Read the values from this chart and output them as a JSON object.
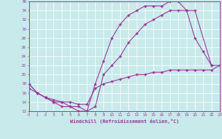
{
  "xlabel": "Windchill (Refroidissement éolien,°C)",
  "xlim": [
    0,
    23
  ],
  "ylim": [
    12,
    36
  ],
  "xticks": [
    0,
    1,
    2,
    3,
    4,
    5,
    6,
    7,
    8,
    9,
    10,
    11,
    12,
    13,
    14,
    15,
    16,
    17,
    18,
    19,
    20,
    21,
    22,
    23
  ],
  "yticks": [
    12,
    14,
    16,
    18,
    20,
    22,
    24,
    26,
    28,
    30,
    32,
    34,
    36
  ],
  "bg_color": "#c8eaea",
  "grid_color": "#ffffff",
  "line_color": "#993399",
  "line1_x": [
    0,
    1,
    2,
    3,
    4,
    5,
    6,
    7,
    8,
    9,
    10,
    11,
    12,
    13,
    14,
    15,
    16,
    17,
    18,
    19,
    20,
    21,
    22,
    23
  ],
  "line1_y": [
    18,
    16,
    15,
    14,
    13,
    13,
    12,
    12,
    18,
    23,
    28,
    31,
    33,
    34,
    35,
    35,
    35,
    36,
    36,
    34,
    28,
    25,
    22,
    22
  ],
  "line2_x": [
    0,
    1,
    2,
    3,
    4,
    5,
    6,
    7,
    8,
    9,
    10,
    11,
    12,
    13,
    14,
    15,
    16,
    17,
    18,
    19,
    20,
    22
  ],
  "line2_y": [
    18,
    16,
    15,
    14,
    14,
    13,
    13,
    12,
    13,
    20,
    22,
    24,
    27,
    29,
    31,
    32,
    33,
    34,
    34,
    34,
    34,
    22
  ],
  "line3_x": [
    0,
    1,
    2,
    3,
    4,
    5,
    6,
    7,
    8,
    9,
    10,
    11,
    12,
    13,
    14,
    15,
    16,
    17,
    18,
    19,
    20,
    21,
    22,
    23
  ],
  "line3_y": [
    17,
    16,
    15,
    14.5,
    14,
    14,
    13.5,
    13.5,
    17,
    18,
    18.5,
    19,
    19.5,
    20,
    20,
    20.5,
    20.5,
    21,
    21,
    21,
    21,
    21,
    21,
    22
  ]
}
